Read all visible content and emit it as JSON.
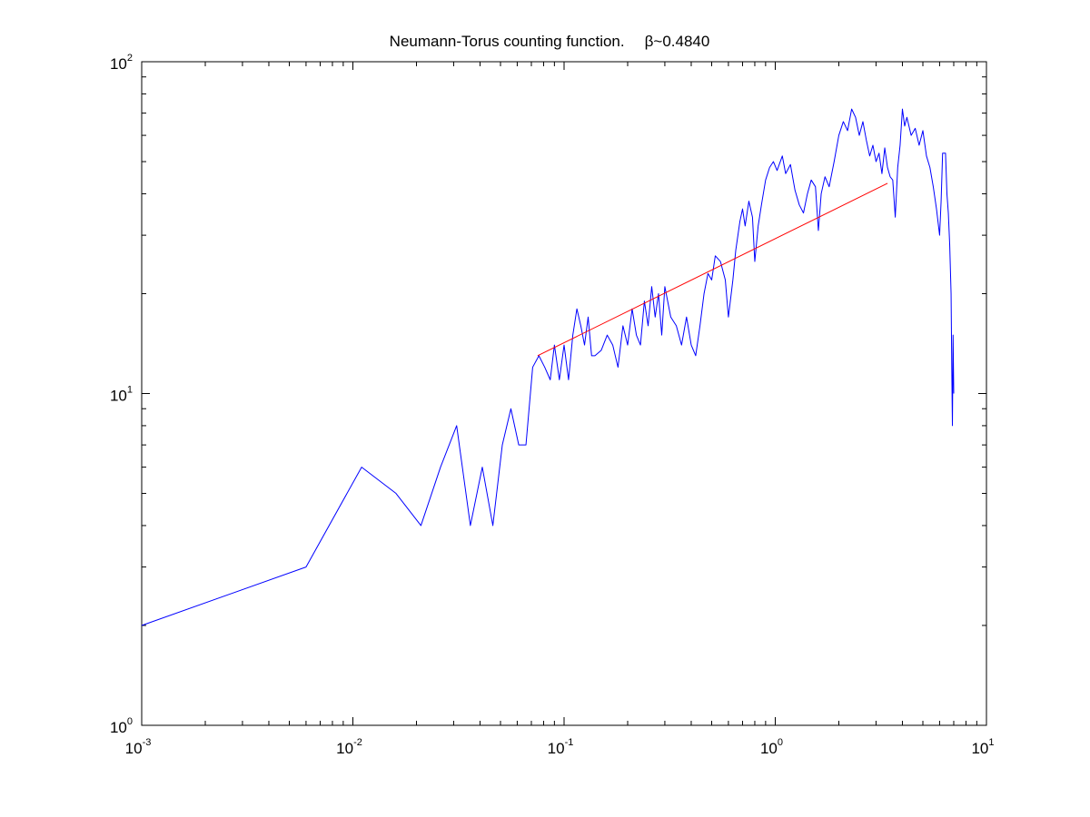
{
  "chart_data": {
    "type": "line",
    "title": "Neumann-Torus counting function.",
    "title_suffix": "β~0.4840",
    "xlabel": "",
    "ylabel": "",
    "xscale": "log",
    "yscale": "log",
    "xlim": [
      0.001,
      10
    ],
    "ylim": [
      1,
      100
    ],
    "grid": false,
    "legend": false,
    "x_ticks": [
      {
        "base": "10",
        "exp": "-3",
        "value": 0.001
      },
      {
        "base": "10",
        "exp": "-2",
        "value": 0.01
      },
      {
        "base": "10",
        "exp": "-1",
        "value": 0.1
      },
      {
        "base": "10",
        "exp": "0",
        "value": 1
      },
      {
        "base": "10",
        "exp": "1",
        "value": 10
      }
    ],
    "y_ticks": [
      {
        "base": "10",
        "exp": "0",
        "value": 1
      },
      {
        "base": "10",
        "exp": "1",
        "value": 10
      },
      {
        "base": "10",
        "exp": "2",
        "value": 100
      }
    ],
    "series": [
      {
        "color": "#0000ff",
        "points": [
          [
            0.001,
            2
          ],
          [
            0.006,
            3
          ],
          [
            0.011,
            6
          ],
          [
            0.016,
            5
          ],
          [
            0.021,
            4
          ],
          [
            0.026,
            6
          ],
          [
            0.031,
            8
          ],
          [
            0.036,
            4
          ],
          [
            0.041,
            6
          ],
          [
            0.046,
            4
          ],
          [
            0.051,
            7
          ],
          [
            0.056,
            9
          ],
          [
            0.061,
            7
          ],
          [
            0.066,
            7
          ],
          [
            0.071,
            12
          ],
          [
            0.076,
            13
          ],
          [
            0.081,
            12
          ],
          [
            0.086,
            11
          ],
          [
            0.09,
            14
          ],
          [
            0.095,
            11
          ],
          [
            0.1,
            14
          ],
          [
            0.105,
            11
          ],
          [
            0.11,
            15
          ],
          [
            0.115,
            18
          ],
          [
            0.12,
            16
          ],
          [
            0.125,
            14
          ],
          [
            0.13,
            17
          ],
          [
            0.135,
            13
          ],
          [
            0.14,
            13
          ],
          [
            0.15,
            13.5
          ],
          [
            0.16,
            15
          ],
          [
            0.17,
            14
          ],
          [
            0.18,
            12
          ],
          [
            0.19,
            16
          ],
          [
            0.2,
            14
          ],
          [
            0.21,
            18
          ],
          [
            0.22,
            15
          ],
          [
            0.23,
            14
          ],
          [
            0.24,
            19
          ],
          [
            0.25,
            16
          ],
          [
            0.26,
            21
          ],
          [
            0.27,
            17
          ],
          [
            0.28,
            20
          ],
          [
            0.29,
            15
          ],
          [
            0.3,
            21
          ],
          [
            0.32,
            17
          ],
          [
            0.34,
            16
          ],
          [
            0.36,
            14
          ],
          [
            0.38,
            17
          ],
          [
            0.4,
            14
          ],
          [
            0.42,
            13
          ],
          [
            0.44,
            16
          ],
          [
            0.46,
            20
          ],
          [
            0.48,
            23
          ],
          [
            0.5,
            22
          ],
          [
            0.52,
            26
          ],
          [
            0.55,
            25
          ],
          [
            0.58,
            22
          ],
          [
            0.6,
            17
          ],
          [
            0.63,
            22
          ],
          [
            0.65,
            27
          ],
          [
            0.68,
            33
          ],
          [
            0.7,
            36
          ],
          [
            0.72,
            32
          ],
          [
            0.75,
            38
          ],
          [
            0.78,
            34
          ],
          [
            0.8,
            25
          ],
          [
            0.83,
            32
          ],
          [
            0.86,
            37
          ],
          [
            0.9,
            44
          ],
          [
            0.94,
            48
          ],
          [
            0.98,
            50
          ],
          [
            1.02,
            47
          ],
          [
            1.08,
            52
          ],
          [
            1.12,
            46
          ],
          [
            1.18,
            49
          ],
          [
            1.24,
            41
          ],
          [
            1.3,
            37
          ],
          [
            1.36,
            35
          ],
          [
            1.42,
            40
          ],
          [
            1.48,
            44
          ],
          [
            1.55,
            42
          ],
          [
            1.6,
            31
          ],
          [
            1.65,
            40
          ],
          [
            1.72,
            45
          ],
          [
            1.8,
            42
          ],
          [
            1.9,
            50
          ],
          [
            2.0,
            60
          ],
          [
            2.1,
            66
          ],
          [
            2.2,
            62
          ],
          [
            2.3,
            72
          ],
          [
            2.4,
            68
          ],
          [
            2.5,
            60
          ],
          [
            2.6,
            66
          ],
          [
            2.7,
            58
          ],
          [
            2.8,
            52
          ],
          [
            2.9,
            56
          ],
          [
            3.0,
            50
          ],
          [
            3.1,
            53
          ],
          [
            3.2,
            46
          ],
          [
            3.3,
            55
          ],
          [
            3.4,
            48
          ],
          [
            3.5,
            45
          ],
          [
            3.6,
            44
          ],
          [
            3.7,
            34
          ],
          [
            3.8,
            48
          ],
          [
            3.9,
            56
          ],
          [
            4.0,
            72
          ],
          [
            4.1,
            64
          ],
          [
            4.2,
            68
          ],
          [
            4.4,
            60
          ],
          [
            4.6,
            63
          ],
          [
            4.8,
            56
          ],
          [
            5.0,
            62
          ],
          [
            5.2,
            52
          ],
          [
            5.4,
            48
          ],
          [
            5.6,
            42
          ],
          [
            5.8,
            36
          ],
          [
            6.0,
            30
          ],
          [
            6.1,
            38
          ],
          [
            6.2,
            53
          ],
          [
            6.4,
            53
          ],
          [
            6.5,
            40
          ],
          [
            6.6,
            35
          ],
          [
            6.7,
            28
          ],
          [
            6.8,
            20
          ],
          [
            6.85,
            12
          ],
          [
            6.9,
            8
          ],
          [
            6.95,
            15
          ],
          [
            7.0,
            10
          ]
        ]
      },
      {
        "color": "#ff0000",
        "points": [
          [
            0.075,
            13
          ],
          [
            3.4,
            43
          ]
        ]
      }
    ]
  }
}
